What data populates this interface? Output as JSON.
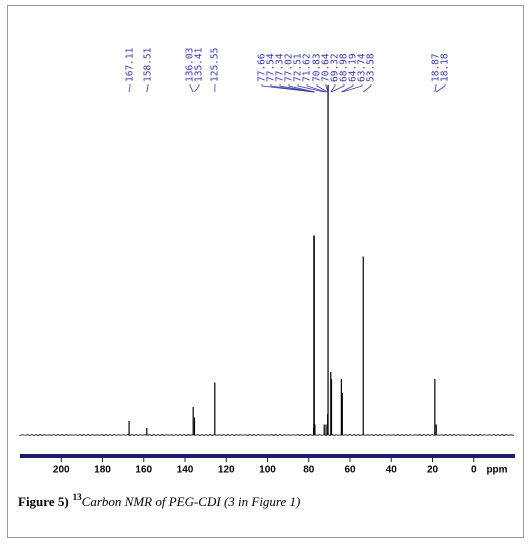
{
  "chart_data": {
    "type": "nmr",
    "x": [
      167.11,
      158.51,
      136.03,
      135.41,
      125.55,
      77.66,
      77.54,
      77.34,
      77.02,
      72.51,
      71.62,
      70.83,
      70.64,
      69.32,
      68.98,
      64.19,
      63.74,
      53.58,
      18.87,
      18.18
    ],
    "values": [
      4,
      2,
      8,
      5,
      15,
      2,
      57,
      57,
      3,
      3,
      3,
      6,
      100,
      18,
      16,
      16,
      12,
      51,
      16,
      3
    ],
    "xlim": [
      220,
      -20
    ],
    "xticks": [
      200,
      180,
      160,
      140,
      120,
      100,
      80,
      60,
      40,
      20,
      0
    ],
    "x_label": "ppm",
    "ylim": [
      0,
      100
    ],
    "color": "#000000",
    "label_color": "#3b3ba8",
    "axis_color": "#1c1c6e",
    "caption": {
      "label": "Figure 5)",
      "superscript": "13",
      "text": "Carbon NMR of PEG-CDI (3 in Figure 1)"
    }
  }
}
